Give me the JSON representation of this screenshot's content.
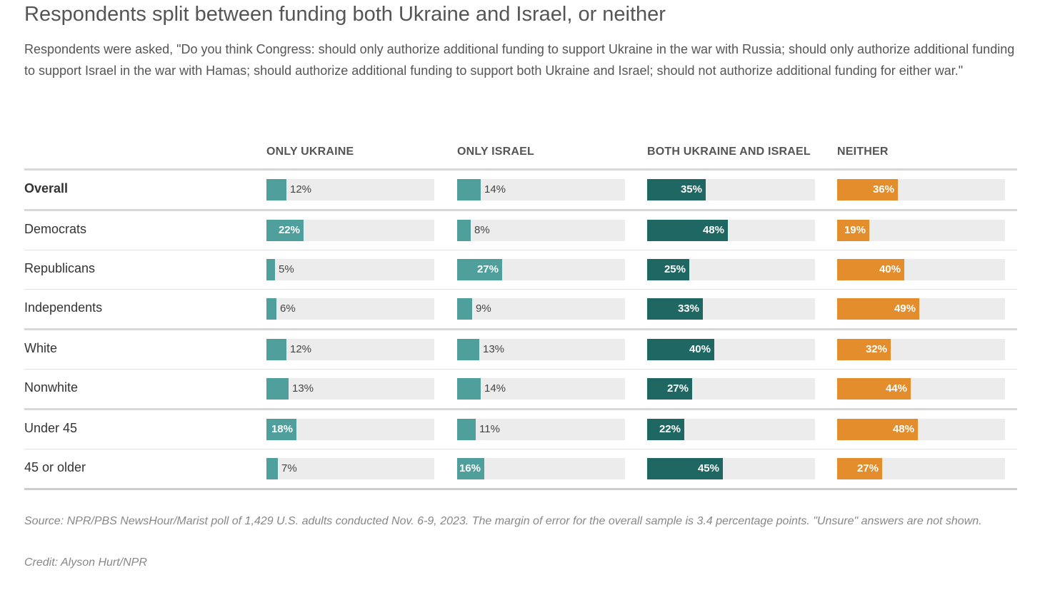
{
  "title": "Respondents split between funding both Ukraine and Israel, or neither",
  "subtitle": "Respondents were asked, \"Do you think Congress: should only authorize additional funding to support Ukraine in the war with Russia; should only authorize additional funding to support Israel in the war with Hamas; should authorize additional funding to support both Ukraine and Israel; should not authorize additional funding for either war.\"",
  "footnote": "Source: NPR/PBS NewsHour/Marist poll of 1,429 U.S. adults conducted Nov. 6-9, 2023. The margin of error for the overall sample is 3.4 percentage points. \"Unsure\" answers are not shown.",
  "credit": "Credit: Alyson Hurt/NPR",
  "colors": {
    "only_ukraine": "#4f9f9c",
    "only_israel": "#4f9f9c",
    "both": "#1f6762",
    "neither": "#e38d2c",
    "track": "#ececec"
  },
  "chart_data": {
    "type": "bar",
    "orientation": "horizontal",
    "layout": "small-multiples",
    "xlim": [
      0,
      100
    ],
    "columns": [
      "ONLY UKRAINE",
      "ONLY ISRAEL",
      "BOTH UKRAINE AND ISRAEL",
      "NEITHER"
    ],
    "rows": [
      {
        "label": "Overall",
        "values": [
          12,
          14,
          35,
          36
        ]
      },
      {
        "label": "Democrats",
        "values": [
          22,
          8,
          48,
          19
        ]
      },
      {
        "label": "Republicans",
        "values": [
          5,
          27,
          25,
          40
        ]
      },
      {
        "label": "Independents",
        "values": [
          6,
          9,
          33,
          49
        ]
      },
      {
        "label": "White",
        "values": [
          12,
          13,
          40,
          32
        ]
      },
      {
        "label": "Nonwhite",
        "values": [
          13,
          14,
          27,
          44
        ]
      },
      {
        "label": "Under 45",
        "values": [
          18,
          11,
          22,
          48
        ]
      },
      {
        "label": "45 or older",
        "values": [
          7,
          16,
          45,
          27
        ]
      }
    ],
    "value_suffix": "%"
  }
}
